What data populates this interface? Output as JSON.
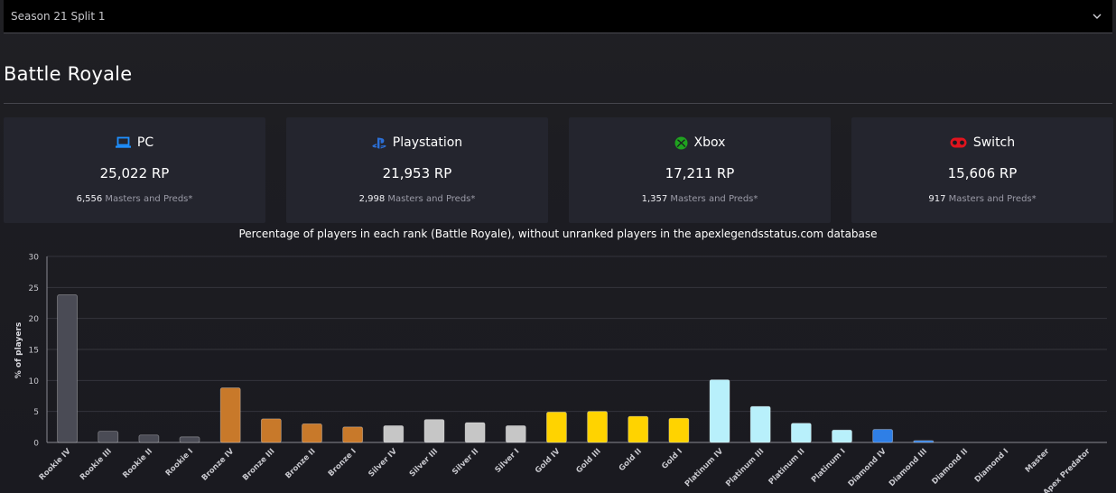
{
  "season_select": {
    "value": "Season 21 Split 1"
  },
  "page_title": "Battle Royale",
  "platforms": [
    {
      "name": "PC",
      "icon": "laptop-icon",
      "rp": "25,022 RP",
      "masters_count": "6,556",
      "masters_label": "Masters and Preds*",
      "color": "#1e90ff"
    },
    {
      "name": "Playstation",
      "icon": "playstation-icon",
      "rp": "21,953 RP",
      "masters_count": "2,998",
      "masters_label": "Masters and Preds*",
      "color": "#2b6fd6"
    },
    {
      "name": "Xbox",
      "icon": "xbox-icon",
      "rp": "17,211 RP",
      "masters_count": "1,357",
      "masters_label": "Masters and Preds*",
      "color": "#1fa21f"
    },
    {
      "name": "Switch",
      "icon": "gamepad-icon",
      "rp": "15,606 RP",
      "masters_count": "917",
      "masters_label": "Masters and Preds*",
      "color": "#e0141e"
    }
  ],
  "chart_data": {
    "type": "bar",
    "title": "Percentage of players in each rank (Battle Royale), without unranked players in the apexlegendsstatus.com database",
    "ylabel": "% of players",
    "xlabel": "",
    "ylim": [
      0,
      30
    ],
    "yticks": [
      0,
      5,
      10,
      15,
      20,
      25,
      30
    ],
    "grid": true,
    "categories": [
      "Rookie IV",
      "Rookie III",
      "Rookie II",
      "Rookie I",
      "Bronze IV",
      "Bronze III",
      "Bronze II",
      "Bronze I",
      "Silver IV",
      "Silver III",
      "Silver II",
      "Silver I",
      "Gold IV",
      "Gold III",
      "Gold II",
      "Gold I",
      "Platinum IV",
      "Platinum III",
      "Platinum II",
      "Platinum I",
      "Diamond IV",
      "Diamond III",
      "Diamond II",
      "Diamond I",
      "Master",
      "Apex Predator"
    ],
    "values": [
      23.8,
      1.8,
      1.2,
      0.9,
      8.8,
      3.8,
      3.0,
      2.5,
      2.7,
      3.7,
      3.2,
      2.7,
      4.9,
      5.0,
      4.2,
      3.9,
      10.1,
      5.8,
      3.1,
      2.0,
      2.1,
      0.3,
      0.0,
      0.0,
      0.0,
      0.0
    ],
    "colors": [
      "#4a4b55",
      "#4a4b55",
      "#4a4b55",
      "#4a4b55",
      "#c8792a",
      "#c8792a",
      "#c8792a",
      "#c8792a",
      "#c6c6c6",
      "#c6c6c6",
      "#c6c6c6",
      "#c6c6c6",
      "#ffd300",
      "#ffd300",
      "#ffd300",
      "#ffd300",
      "#b8f0fb",
      "#b8f0fb",
      "#b8f0fb",
      "#b8f0fb",
      "#2f7fe6",
      "#2f7fe6",
      "#2f7fe6",
      "#2f7fe6",
      "#b040f0",
      "#e8243c"
    ]
  }
}
